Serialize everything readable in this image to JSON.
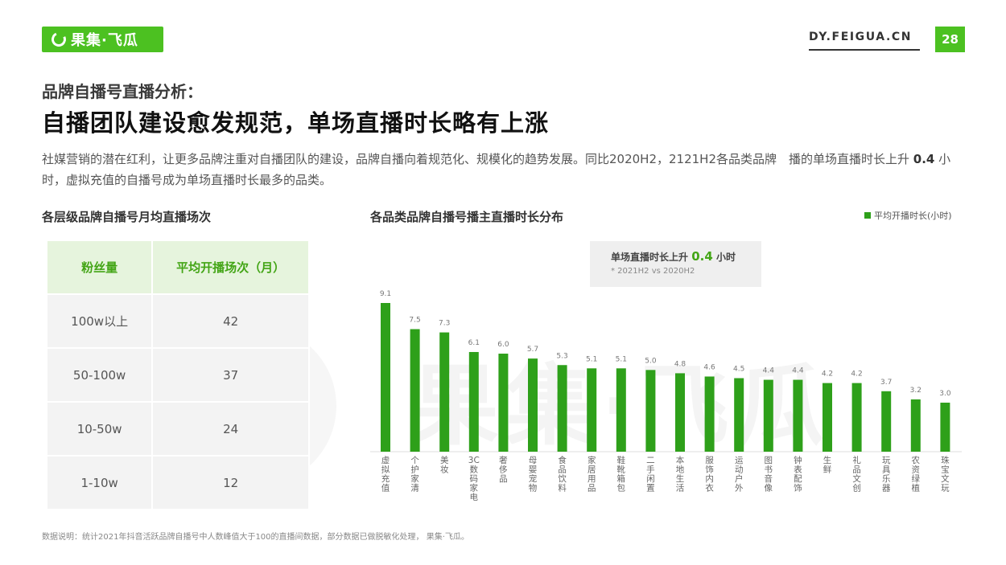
{
  "header": {
    "logo_text": "果集·飞瓜",
    "site_url": "DY.FEIGUA.CN",
    "page_number": "28"
  },
  "kicker": "品牌自播号直播分析：",
  "headline": "自播团队建设愈发规范，单场直播时长略有上涨",
  "description": {
    "part1": "社媒营销的潜在红利，让更多品牌注重对自播团队的建设，品牌自播向着规范化、规模化的趋势发展。同比2020H2，2121H2各品类品牌　播的单场直播时长上升 ",
    "highlight": "0.4",
    "part2": " 小时，虚拟充值的自播号成为单场直播时长最多的品类。"
  },
  "table": {
    "title": "各层级品牌自播号月均直播场次",
    "headers": [
      "粉丝量",
      "平均开播场次（月）"
    ],
    "rows": [
      [
        "100w以上",
        "42"
      ],
      [
        "50-100w",
        "37"
      ],
      [
        "10-50w",
        "24"
      ],
      [
        "1-10w",
        "12"
      ]
    ]
  },
  "callout": {
    "main_prefix": "单场直播时长上升 ",
    "main_value": "0.4",
    "main_suffix": " 小时",
    "sub": "* 2021H2 vs 2020H2"
  },
  "watermark": "果集·飞瓜",
  "footnote": "数据说明：统计2021年抖音活跃品牌自播号中人数峰值大于100的直播间数据，部分数据已做脱敏化处理， 果集·飞瓜。",
  "colors": {
    "accent": "#4cc121",
    "bar": "#2ea01a"
  },
  "chart_data": {
    "type": "bar",
    "title": "各品类品牌自播号播主直播时长分布",
    "legend": "平均开播时长(小时)",
    "legend_position": "top-right",
    "grid": false,
    "categories": [
      "虚拟充值",
      "个护家清",
      "美妆",
      "3C数码家电",
      "奢侈品",
      "母婴宠物",
      "食品饮料",
      "家居用品",
      "鞋靴箱包",
      "二手闲置",
      "本地生活",
      "服饰内衣",
      "运动户外",
      "图书音像",
      "钟表配饰",
      "生鲜",
      "礼品文创",
      "玩具乐器",
      "农资绿植",
      "珠宝文玩"
    ],
    "series": [
      {
        "name": "平均开播时长(小时)",
        "values": [
          9.1,
          7.5,
          7.3,
          6.1,
          6.0,
          5.7,
          5.3,
          5.1,
          5.1,
          5.0,
          4.8,
          4.6,
          4.5,
          4.4,
          4.4,
          4.2,
          4.2,
          3.7,
          3.2,
          3.0
        ]
      }
    ],
    "ylim": [
      0,
      9.1
    ]
  }
}
